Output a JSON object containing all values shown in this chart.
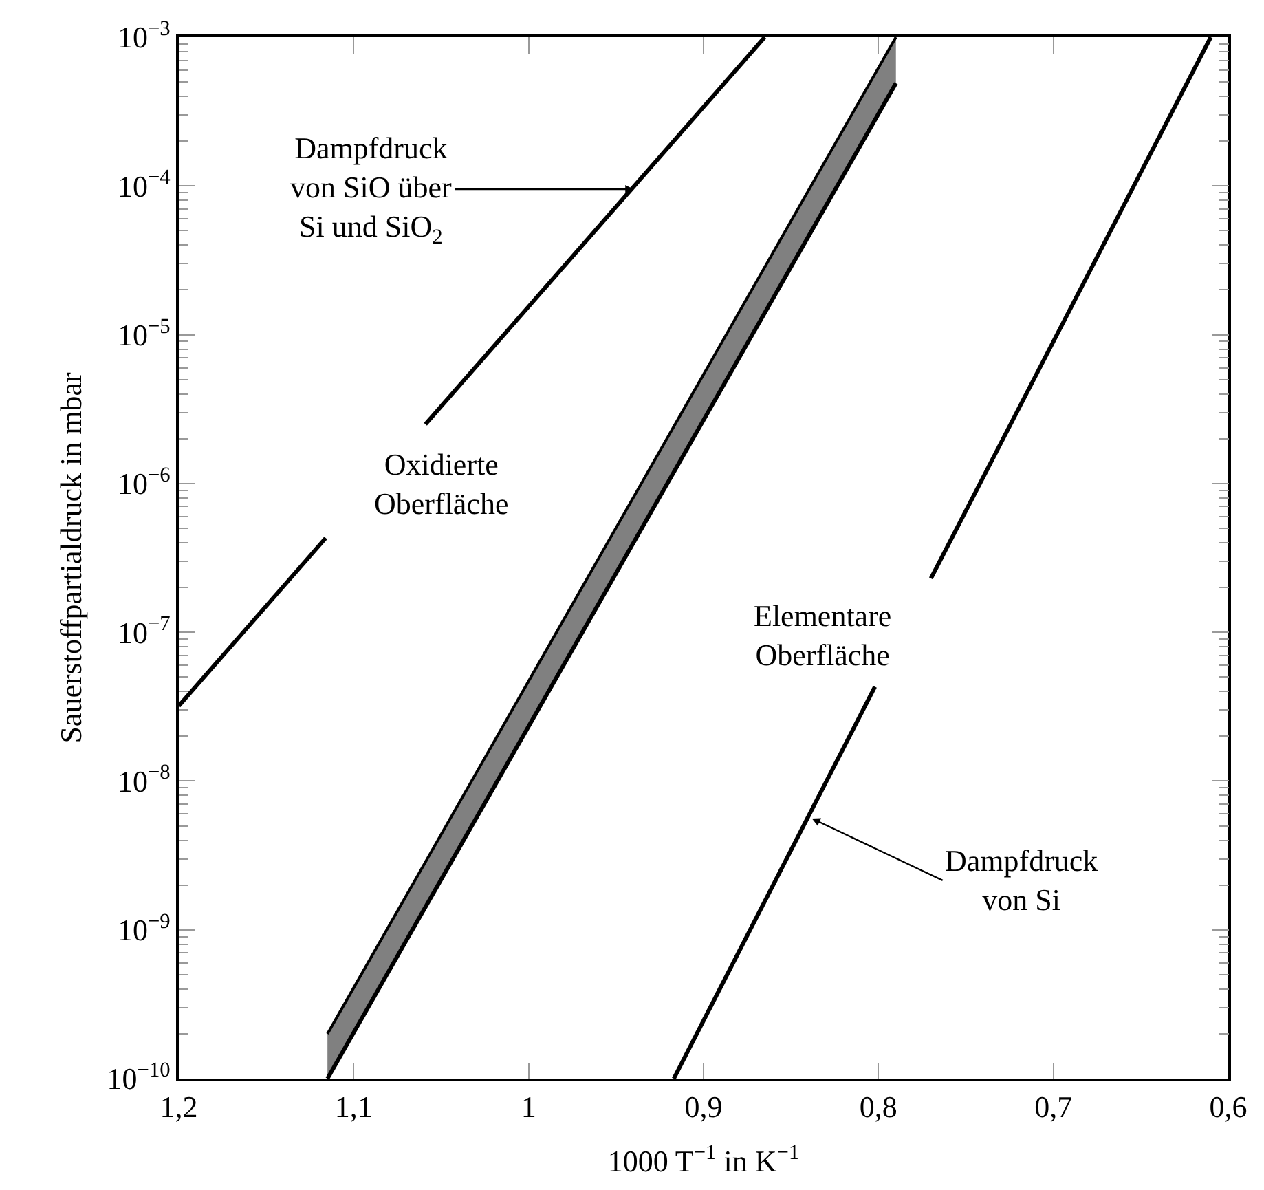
{
  "chart_data": {
    "type": "line",
    "xlabel": "1000 T$^{−1}$ in K$^{−1}$",
    "ylabel": "Sauerstoffpartialdruck in mbar",
    "log": "y",
    "marker": "none",
    "line_style": "solid",
    "xlim": [
      1.2,
      0.6
    ],
    "xticks": [
      {
        "value": 1.2,
        "label": "1,2"
      },
      {
        "value": 1.1,
        "label": "1,1"
      },
      1,
      {
        "value": 0.9,
        "label": "0,9"
      },
      {
        "value": 0.8,
        "label": "0,8"
      },
      {
        "value": 0.7,
        "label": "0,7"
      },
      {
        "value": 0.6,
        "label": "0,6"
      }
    ],
    "ylim": [
      1e-10,
      0.001
    ],
    "yticks": [
      {
        "value": 1e-10,
        "label": "10$^{−10}$"
      },
      {
        "value": 1e-09,
        "label": "10$^{−9}$"
      },
      {
        "value": 1e-08,
        "label": "10$^{−8}$"
      },
      {
        "value": 1e-07,
        "label": "10$^{−7}$"
      },
      {
        "value": 1e-06,
        "label": "10$^{−6}$"
      },
      {
        "value": 1e-05,
        "label": "10$^{−5}$"
      },
      {
        "value": 0.0001,
        "label": "10$^{−4}$"
      },
      {
        "value": 0.001,
        "label": "10$^{−3}$"
      }
    ],
    "series": [
      {
        "color": "#000000",
        "x": [
          1.2,
          1.116,
          1.09,
          1.059,
          0.865
        ],
        "values": [
          3.2e-08,
          4.3e-07,
          null,
          2.5e-06,
          0.001
        ]
      },
      {
        "color": "#000000",
        "x": [
          1.115,
          0.79
        ],
        "values": [
          1e-10,
          0.00049
        ]
      },
      {
        "type": "area",
        "color": "#808080",
        "x": [
          1.115,
          0.79
        ],
        "values": [
          2e-10,
          0.001
        ]
      },
      {
        "color": "#000000",
        "x": [
          0.917,
          0.802,
          0.786,
          0.77,
          0.61
        ],
        "values": [
          1e-10,
          4.3e-08,
          null,
          2.3e-07,
          0.001
        ]
      }
    ],
    "annotations": [
      {
        "text": "Dampfdruck\nvon SiO über\nSi und SiO$_{2}$",
        "x": 0.94,
        "y": 9.5e-05
      },
      "Oxidierte\nOberfläche",
      "Elementare\nOberfläche",
      {
        "text": "Dampfdruck\nvon Si",
        "x": 0.838,
        "y": 5.6e-09
      }
    ]
  }
}
